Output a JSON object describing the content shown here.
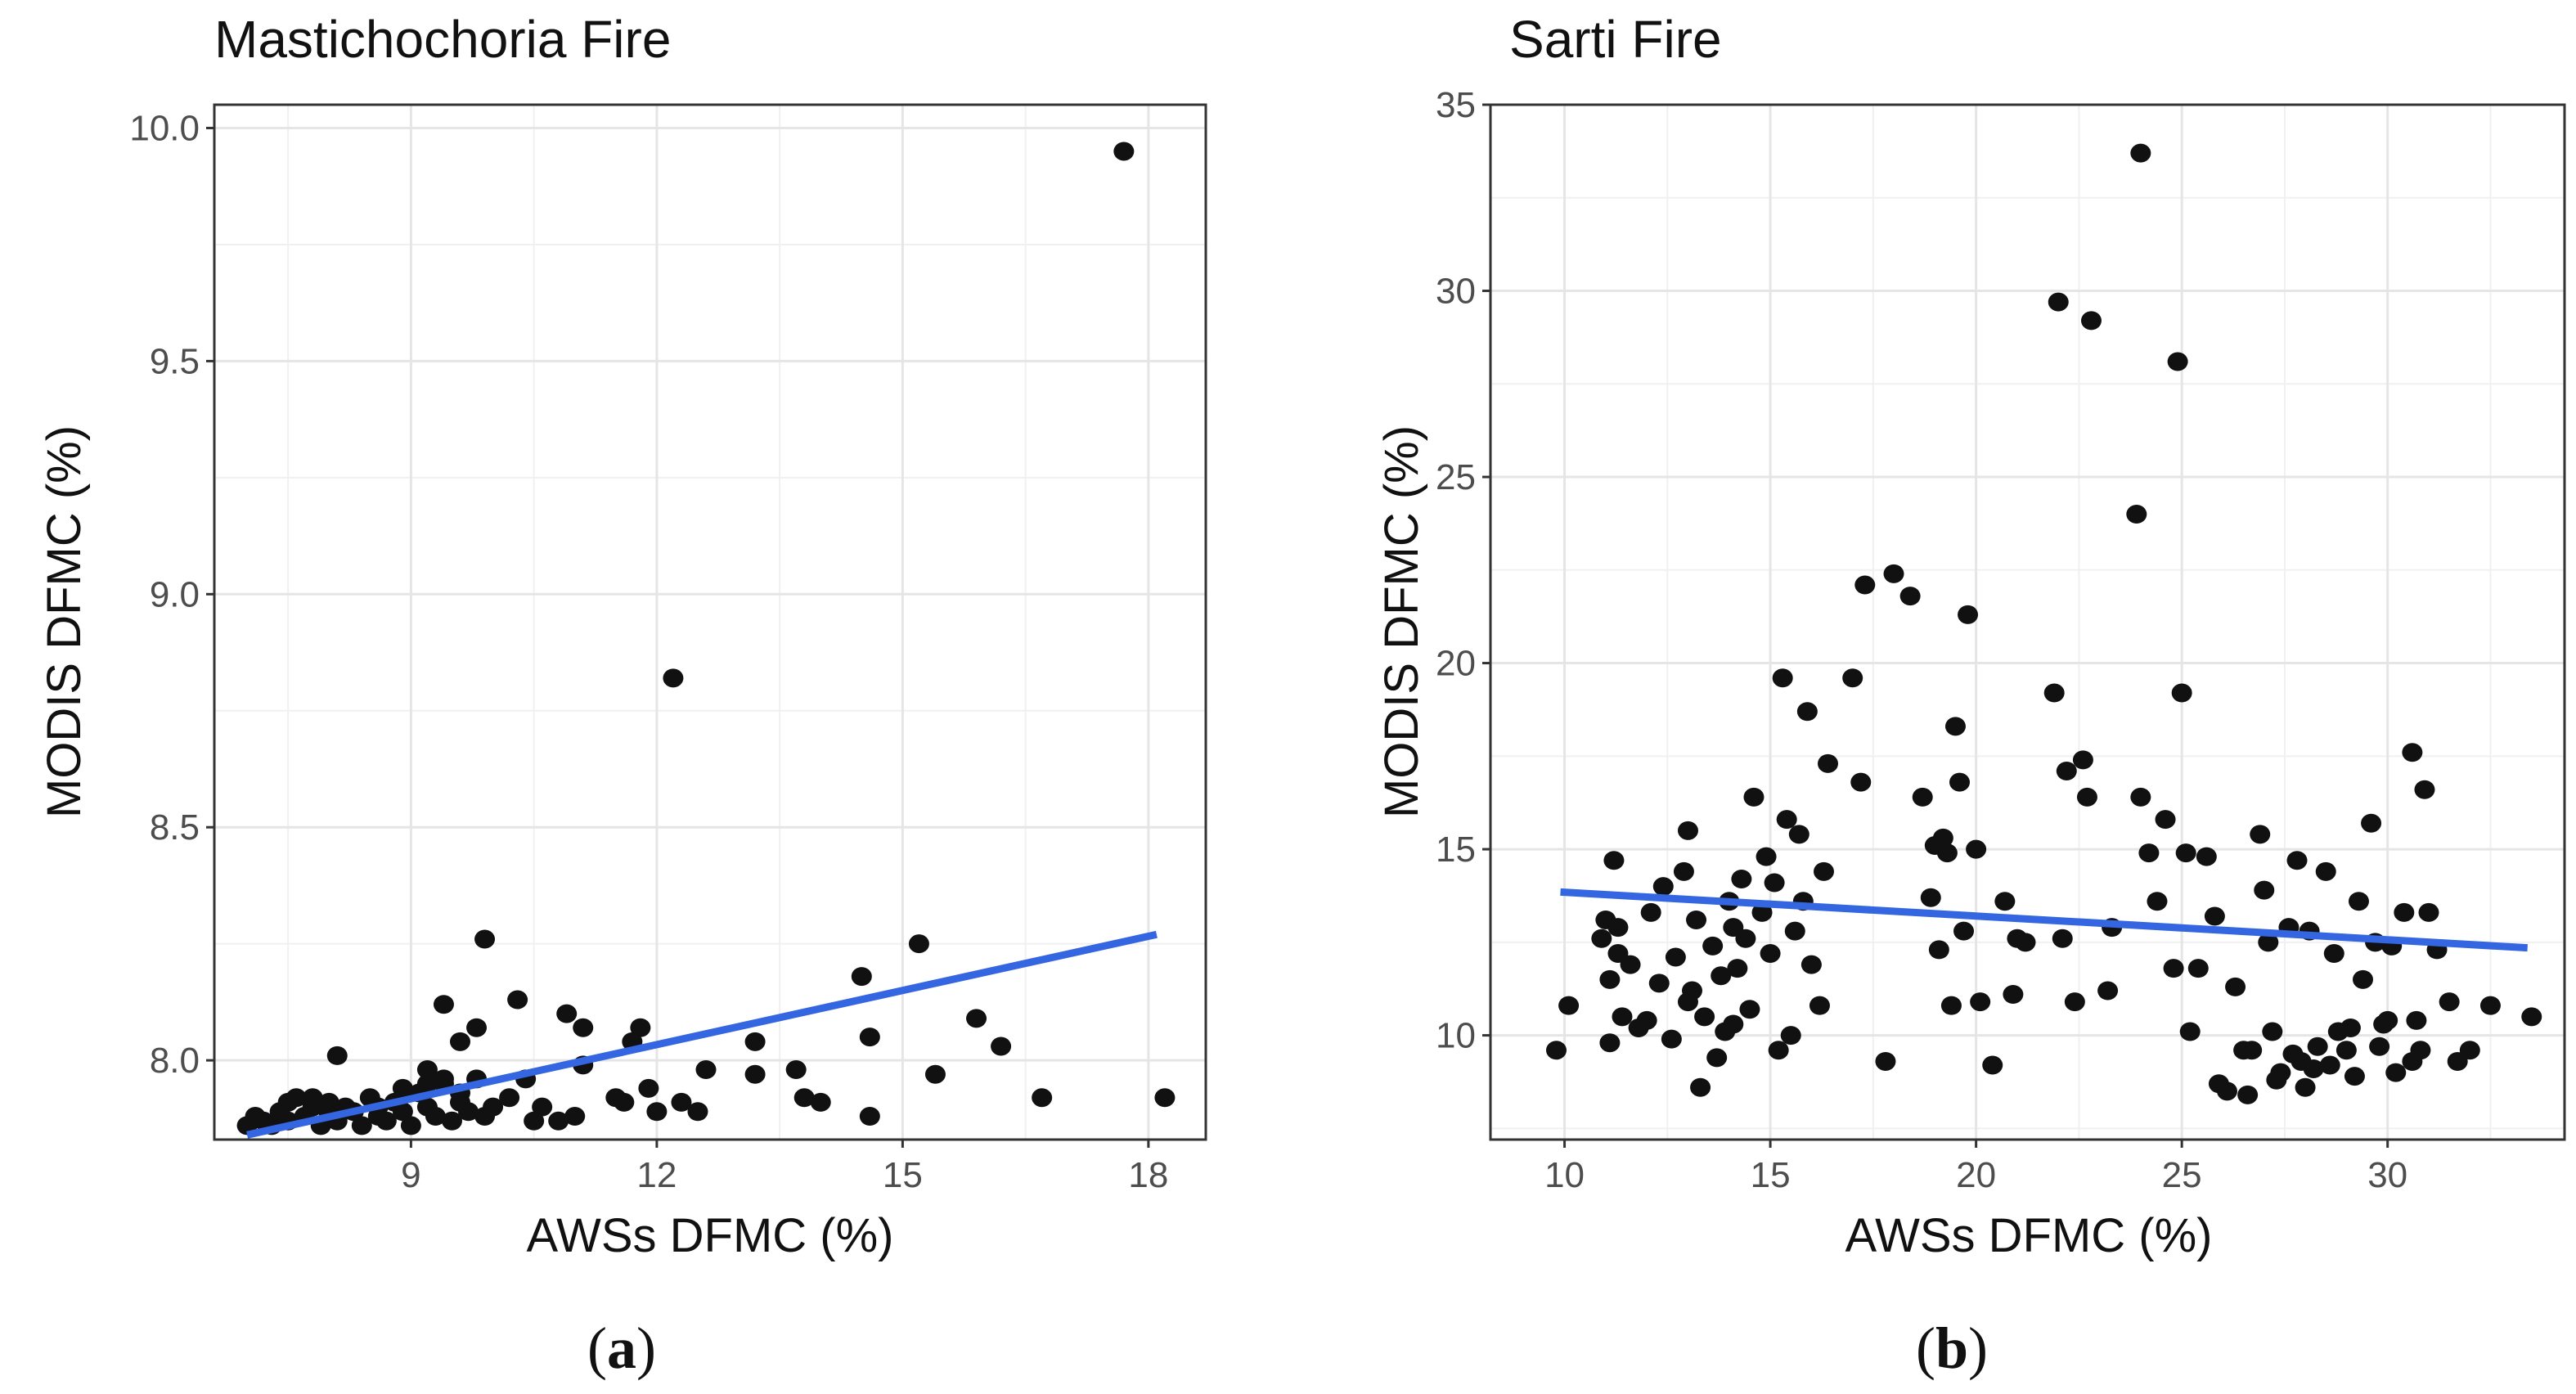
{
  "chart_data": [
    {
      "type": "scatter",
      "title": "Mastichochoria Fire",
      "xlabel": "AWSs DFMC (%)",
      "ylabel": "MODIS DFMC (%)",
      "caption_letter": "a",
      "xlim": [
        6.6,
        18.7
      ],
      "ylim": [
        7.83,
        10.05
      ],
      "xticks": [
        9,
        12,
        15,
        18
      ],
      "xtick_labels": [
        "9",
        "12",
        "15",
        "18"
      ],
      "yticks": [
        8.0,
        8.5,
        9.0,
        9.5,
        10.0
      ],
      "ytick_labels": [
        "8.0",
        "8.5",
        "9.0",
        "9.5",
        "10.0"
      ],
      "grid": true,
      "point_color": "#111111",
      "line_color": "#3366e0",
      "trend": [
        [
          7.0,
          7.84
        ],
        [
          18.1,
          8.27
        ]
      ],
      "points": [
        [
          7.0,
          7.86
        ],
        [
          7.1,
          7.88
        ],
        [
          7.2,
          7.87
        ],
        [
          7.3,
          7.86
        ],
        [
          7.4,
          7.89
        ],
        [
          7.5,
          7.91
        ],
        [
          7.5,
          7.87
        ],
        [
          7.6,
          7.92
        ],
        [
          7.7,
          7.88
        ],
        [
          7.8,
          7.9
        ],
        [
          7.9,
          7.86
        ],
        [
          8.0,
          7.91
        ],
        [
          8.0,
          7.88
        ],
        [
          8.1,
          7.87
        ],
        [
          8.2,
          7.9
        ],
        [
          8.3,
          7.89
        ],
        [
          8.4,
          7.86
        ],
        [
          8.5,
          7.92
        ],
        [
          8.6,
          7.88
        ],
        [
          8.7,
          7.87
        ],
        [
          8.8,
          7.91
        ],
        [
          8.9,
          7.89
        ],
        [
          9.0,
          7.86
        ],
        [
          9.1,
          7.93
        ],
        [
          9.2,
          7.9
        ],
        [
          9.3,
          7.88
        ],
        [
          9.4,
          7.95
        ],
        [
          9.5,
          7.87
        ],
        [
          9.6,
          7.91
        ],
        [
          9.7,
          7.89
        ],
        [
          9.8,
          7.96
        ],
        [
          9.9,
          7.88
        ],
        [
          10.0,
          7.9
        ],
        [
          8.1,
          8.01
        ],
        [
          9.2,
          7.98
        ],
        [
          9.4,
          7.96
        ],
        [
          9.6,
          8.04
        ],
        [
          9.4,
          8.12
        ],
        [
          9.8,
          8.07
        ],
        [
          9.9,
          8.26
        ],
        [
          10.3,
          8.13
        ],
        [
          10.2,
          7.92
        ],
        [
          10.4,
          7.96
        ],
        [
          10.6,
          7.9
        ],
        [
          10.8,
          7.87
        ],
        [
          10.9,
          8.1
        ],
        [
          11.1,
          8.07
        ],
        [
          11.1,
          7.99
        ],
        [
          11.0,
          7.88
        ],
        [
          11.5,
          7.92
        ],
        [
          11.7,
          8.04
        ],
        [
          11.8,
          8.07
        ],
        [
          11.9,
          7.94
        ],
        [
          12.0,
          7.89
        ],
        [
          12.2,
          8.82
        ],
        [
          12.3,
          7.91
        ],
        [
          12.5,
          7.89
        ],
        [
          12.6,
          7.98
        ],
        [
          13.2,
          8.04
        ],
        [
          13.2,
          7.97
        ],
        [
          13.7,
          7.98
        ],
        [
          13.8,
          7.92
        ],
        [
          14.0,
          7.91
        ],
        [
          14.5,
          8.18
        ],
        [
          14.6,
          8.05
        ],
        [
          14.6,
          7.88
        ],
        [
          15.2,
          8.25
        ],
        [
          15.4,
          7.97
        ],
        [
          15.9,
          8.09
        ],
        [
          16.2,
          8.03
        ],
        [
          16.7,
          7.92
        ],
        [
          17.7,
          9.95
        ],
        [
          18.2,
          7.92
        ],
        [
          9.2,
          7.95
        ],
        [
          8.6,
          7.9
        ],
        [
          8.9,
          7.94
        ],
        [
          9.6,
          7.93
        ],
        [
          7.8,
          7.92
        ],
        [
          10.5,
          7.87
        ],
        [
          11.6,
          7.91
        ]
      ]
    },
    {
      "type": "scatter",
      "title": "Sarti Fire",
      "xlabel": "AWSs DFMC (%)",
      "ylabel": "MODIS DFMC (%)",
      "caption_letter": "b",
      "xlim": [
        8.2,
        34.3
      ],
      "ylim": [
        7.2,
        35
      ],
      "xticks": [
        10,
        15,
        20,
        25,
        30
      ],
      "xtick_labels": [
        "10",
        "15",
        "20",
        "25",
        "30"
      ],
      "yticks": [
        10,
        15,
        20,
        25,
        30,
        35
      ],
      "ytick_labels": [
        "10",
        "15",
        "20",
        "25",
        "30",
        "35"
      ],
      "grid": true,
      "point_color": "#111111",
      "line_color": "#3366e0",
      "trend": [
        [
          9.9,
          13.85
        ],
        [
          33.4,
          12.35
        ]
      ],
      "points": [
        [
          9.8,
          9.6
        ],
        [
          10.1,
          10.8
        ],
        [
          10.9,
          12.6
        ],
        [
          11.0,
          13.1
        ],
        [
          11.1,
          11.5
        ],
        [
          11.1,
          9.8
        ],
        [
          11.2,
          14.7
        ],
        [
          11.3,
          12.2
        ],
        [
          11.4,
          10.5
        ],
        [
          11.6,
          11.9
        ],
        [
          11.8,
          10.2
        ],
        [
          12.1,
          13.3
        ],
        [
          12.3,
          11.4
        ],
        [
          12.4,
          14.0
        ],
        [
          12.6,
          9.9
        ],
        [
          12.7,
          12.1
        ],
        [
          12.9,
          14.4
        ],
        [
          13.0,
          15.5
        ],
        [
          13.1,
          11.2
        ],
        [
          13.2,
          13.1
        ],
        [
          13.3,
          8.6
        ],
        [
          13.4,
          10.5
        ],
        [
          13.6,
          12.4
        ],
        [
          13.7,
          9.4
        ],
        [
          13.8,
          11.6
        ],
        [
          13.9,
          10.1
        ],
        [
          14.0,
          13.6
        ],
        [
          14.1,
          12.9
        ],
        [
          14.2,
          11.8
        ],
        [
          14.3,
          14.2
        ],
        [
          14.4,
          12.6
        ],
        [
          14.5,
          10.7
        ],
        [
          14.6,
          16.4
        ],
        [
          14.8,
          13.3
        ],
        [
          15.0,
          12.2
        ],
        [
          15.1,
          14.1
        ],
        [
          15.2,
          9.6
        ],
        [
          15.3,
          19.6
        ],
        [
          15.4,
          15.8
        ],
        [
          15.5,
          10.0
        ],
        [
          15.7,
          15.4
        ],
        [
          15.8,
          13.6
        ],
        [
          15.9,
          18.7
        ],
        [
          16.0,
          11.9
        ],
        [
          16.2,
          10.8
        ],
        [
          16.3,
          14.4
        ],
        [
          17.0,
          19.6
        ],
        [
          17.2,
          16.8
        ],
        [
          17.3,
          22.1
        ],
        [
          17.8,
          9.3
        ],
        [
          18.0,
          22.4
        ],
        [
          18.4,
          21.8
        ],
        [
          18.7,
          16.4
        ],
        [
          18.9,
          13.7
        ],
        [
          19.0,
          15.1
        ],
        [
          19.1,
          12.3
        ],
        [
          19.3,
          14.9
        ],
        [
          19.4,
          10.8
        ],
        [
          19.5,
          18.3
        ],
        [
          19.6,
          16.8
        ],
        [
          19.7,
          12.8
        ],
        [
          19.8,
          21.3
        ],
        [
          20.0,
          15.0
        ],
        [
          20.1,
          10.9
        ],
        [
          20.4,
          9.2
        ],
        [
          20.7,
          13.6
        ],
        [
          20.9,
          11.1
        ],
        [
          21.0,
          12.6
        ],
        [
          21.2,
          12.5
        ],
        [
          21.9,
          19.2
        ],
        [
          22.0,
          29.7
        ],
        [
          22.1,
          12.6
        ],
        [
          22.2,
          17.1
        ],
        [
          22.4,
          10.9
        ],
        [
          22.6,
          17.4
        ],
        [
          22.7,
          16.4
        ],
        [
          22.8,
          29.2
        ],
        [
          23.2,
          11.2
        ],
        [
          23.3,
          12.9
        ],
        [
          23.9,
          24.0
        ],
        [
          24.0,
          33.7
        ],
        [
          24.0,
          16.4
        ],
        [
          24.2,
          14.9
        ],
        [
          24.4,
          13.6
        ],
        [
          24.6,
          15.8
        ],
        [
          24.8,
          11.8
        ],
        [
          24.9,
          28.1
        ],
        [
          25.0,
          19.2
        ],
        [
          25.1,
          14.9
        ],
        [
          25.2,
          10.1
        ],
        [
          25.4,
          11.8
        ],
        [
          25.6,
          14.8
        ],
        [
          25.8,
          13.2
        ],
        [
          25.9,
          8.7
        ],
        [
          26.1,
          8.5
        ],
        [
          26.3,
          11.3
        ],
        [
          26.5,
          9.6
        ],
        [
          26.7,
          9.6
        ],
        [
          26.9,
          15.4
        ],
        [
          27.0,
          13.9
        ],
        [
          27.1,
          12.5
        ],
        [
          27.2,
          10.1
        ],
        [
          27.4,
          9.0
        ],
        [
          27.6,
          12.9
        ],
        [
          27.7,
          9.5
        ],
        [
          27.8,
          14.7
        ],
        [
          27.9,
          9.3
        ],
        [
          28.0,
          8.6
        ],
        [
          28.1,
          12.8
        ],
        [
          28.3,
          9.7
        ],
        [
          28.5,
          14.4
        ],
        [
          28.6,
          9.2
        ],
        [
          28.7,
          12.2
        ],
        [
          28.8,
          10.1
        ],
        [
          29.0,
          9.6
        ],
        [
          29.1,
          10.2
        ],
        [
          29.2,
          8.9
        ],
        [
          29.3,
          13.6
        ],
        [
          29.4,
          11.5
        ],
        [
          29.6,
          15.7
        ],
        [
          29.7,
          12.5
        ],
        [
          29.8,
          9.7
        ],
        [
          29.9,
          10.3
        ],
        [
          30.0,
          10.4
        ],
        [
          30.1,
          12.4
        ],
        [
          30.2,
          9.0
        ],
        [
          30.4,
          13.3
        ],
        [
          30.6,
          17.6
        ],
        [
          30.6,
          9.3
        ],
        [
          30.7,
          10.4
        ],
        [
          30.8,
          9.6
        ],
        [
          30.9,
          16.6
        ],
        [
          31.0,
          13.3
        ],
        [
          31.2,
          12.3
        ],
        [
          31.5,
          10.9
        ],
        [
          31.7,
          9.3
        ],
        [
          32.0,
          9.6
        ],
        [
          32.5,
          10.8
        ],
        [
          33.5,
          10.5
        ],
        [
          11.3,
          12.9
        ],
        [
          12.0,
          10.4
        ],
        [
          13.0,
          10.9
        ],
        [
          14.1,
          10.3
        ],
        [
          14.9,
          14.8
        ],
        [
          15.6,
          12.8
        ],
        [
          16.4,
          17.3
        ],
        [
          19.2,
          15.3
        ],
        [
          28.2,
          9.1
        ],
        [
          26.6,
          8.4
        ],
        [
          27.3,
          8.8
        ]
      ]
    }
  ]
}
